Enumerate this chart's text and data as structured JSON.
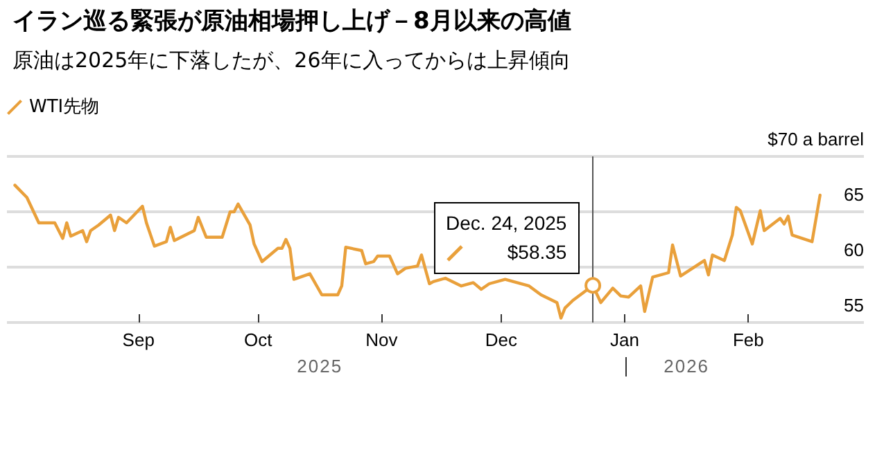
{
  "chart_data": {
    "type": "line",
    "title": "イラン巡る緊張が原油相場押し上げ－8月以来の高値",
    "subtitle": "原油は2025年に下落したが、26年に入ってからは上昇傾向",
    "x": [
      "2025-08-01",
      "2025-08-04",
      "2025-08-07",
      "2025-08-11",
      "2025-08-13",
      "2025-08-14",
      "2025-08-15",
      "2025-08-18",
      "2025-08-19",
      "2025-08-20",
      "2025-08-22",
      "2025-08-25",
      "2025-08-26",
      "2025-08-27",
      "2025-08-29",
      "2025-09-02",
      "2025-09-03",
      "2025-09-05",
      "2025-09-08",
      "2025-09-09",
      "2025-09-10",
      "2025-09-15",
      "2025-09-16",
      "2025-09-18",
      "2025-09-22",
      "2025-09-24",
      "2025-09-25",
      "2025-09-26",
      "2025-09-29",
      "2025-09-30",
      "2025-10-02",
      "2025-10-06",
      "2025-10-07",
      "2025-10-08",
      "2025-10-09",
      "2025-10-10",
      "2025-10-14",
      "2025-10-17",
      "2025-10-21",
      "2025-10-22",
      "2025-10-23",
      "2025-10-27",
      "2025-10-28",
      "2025-10-30",
      "2025-10-31",
      "2025-11-03",
      "2025-11-05",
      "2025-11-07",
      "2025-11-10",
      "2025-11-11",
      "2025-11-13",
      "2025-11-14",
      "2025-11-17",
      "2025-11-21",
      "2025-11-24",
      "2025-11-26",
      "2025-11-28",
      "2025-12-02",
      "2025-12-05",
      "2025-12-08",
      "2025-12-11",
      "2025-12-15",
      "2025-12-16",
      "2025-12-17",
      "2025-12-19",
      "2025-12-24",
      "2025-12-26",
      "2025-12-29",
      "2025-12-31",
      "2026-01-02",
      "2026-01-05",
      "2026-01-06",
      "2026-01-08",
      "2026-01-12",
      "2026-01-13",
      "2026-01-15",
      "2026-01-21",
      "2026-01-22",
      "2026-01-23",
      "2026-01-26",
      "2026-01-28",
      "2026-01-29",
      "2026-01-30",
      "2026-02-02",
      "2026-02-04",
      "2026-02-05",
      "2026-02-09",
      "2026-02-10",
      "2026-02-11",
      "2026-02-12",
      "2026-02-17",
      "2026-02-19"
    ],
    "series": [
      {
        "name": "WTI先物",
        "color": "#e9a03b",
        "values": [
          67.4,
          66.3,
          64.0,
          64.0,
          62.6,
          64.0,
          62.8,
          63.3,
          62.3,
          63.3,
          63.8,
          64.7,
          63.3,
          64.5,
          64.0,
          65.5,
          64.0,
          61.9,
          62.3,
          63.6,
          62.4,
          63.3,
          64.5,
          62.7,
          62.7,
          65.0,
          65.0,
          65.7,
          63.8,
          62.1,
          60.5,
          61.7,
          61.7,
          62.5,
          61.7,
          58.9,
          59.4,
          57.5,
          57.5,
          58.3,
          61.8,
          61.5,
          60.3,
          60.5,
          61.0,
          61.0,
          59.4,
          59.9,
          60.1,
          61.1,
          58.5,
          58.7,
          59.0,
          58.3,
          58.6,
          58.0,
          58.5,
          58.9,
          58.6,
          58.3,
          57.5,
          56.8,
          55.4,
          56.3,
          57.0,
          58.35,
          56.8,
          58.1,
          57.4,
          57.3,
          58.3,
          56.0,
          59.1,
          59.5,
          62.0,
          59.2,
          60.6,
          59.3,
          61.1,
          60.6,
          62.9,
          65.4,
          65.1,
          62.1,
          65.1,
          63.3,
          64.4,
          63.9,
          64.6,
          62.9,
          62.3,
          66.5
        ]
      }
    ],
    "xlim": [
      "2025-07-30",
      "2026-03-02"
    ],
    "xticks": [
      {
        "value": "2025-09-01",
        "label": "Sep"
      },
      {
        "value": "2025-10-01",
        "label": "Oct"
      },
      {
        "value": "2025-11-01",
        "label": "Nov"
      },
      {
        "value": "2025-12-01",
        "label": "Dec"
      },
      {
        "value": "2026-01-01",
        "label": "Jan"
      },
      {
        "value": "2026-02-01",
        "label": "Feb"
      }
    ],
    "ylim": [
      55,
      70
    ],
    "yticks": [
      55,
      60,
      65,
      {
        "value": 70,
        "label": "$70 a barrel"
      }
    ],
    "ref_lines": [
      {
        "axis": "x",
        "value": "2025-12-24",
        "label": null,
        "color": "#555555"
      }
    ],
    "annotations": [
      {
        "text": "Dec. 24, 2025",
        "x": "2025-12-24",
        "y": 58.35
      },
      {
        "text": "$58.35",
        "x": "2025-12-24",
        "y": 58.35
      },
      "2025",
      "2026"
    ],
    "grid": "y",
    "legend": "top left",
    "marker": "none",
    "line_style": "solid"
  }
}
